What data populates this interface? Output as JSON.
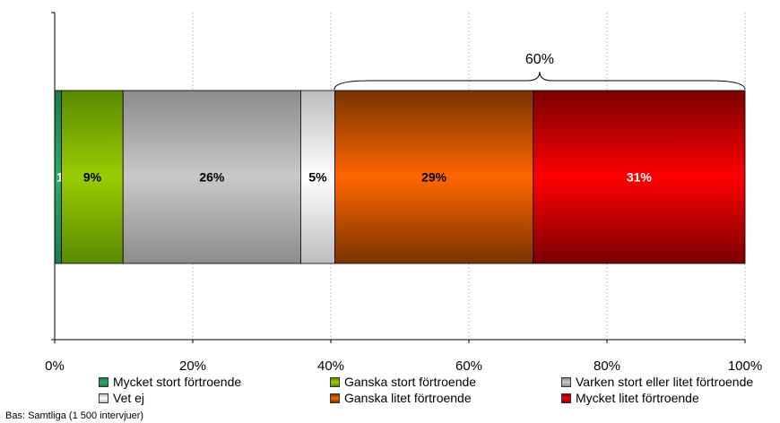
{
  "chart_data": {
    "type": "bar",
    "orientation": "horizontal",
    "stacked": true,
    "x_ticks": [
      "0%",
      "20%",
      "40%",
      "60%",
      "80%",
      "100%"
    ],
    "xlim": [
      0,
      100
    ],
    "grid": true,
    "legend_position": "bottom",
    "series": [
      {
        "name": "Mycket stort förtroende",
        "value": 1,
        "label": "1%",
        "color": "#1f7a4a",
        "color_light": "#2fa86a",
        "label_color": "#ffffff"
      },
      {
        "name": "Ganska stort förtroende",
        "value": 9,
        "label": "9%",
        "color": "#5a8a00",
        "color_light": "#99cc00",
        "label_color": "#000000"
      },
      {
        "name": "Varken stort eller litet förtroende",
        "value": 26,
        "label": "26%",
        "color": "#8c8c8c",
        "color_light": "#c8c8c8",
        "label_color": "#000000"
      },
      {
        "name": "Vet ej",
        "value": 5,
        "label": "5%",
        "color": "#bdbdbd",
        "color_light": "#ffffff",
        "label_color": "#000000"
      },
      {
        "name": "Ganska litet förtroende",
        "value": 29,
        "label": "29%",
        "color": "#7a3300",
        "color_light": "#ff6600",
        "label_color": "#000000"
      },
      {
        "name": "Mycket litet förtroende",
        "value": 31,
        "label": "31%",
        "color": "#7a0000",
        "color_light": "#ff0000",
        "label_color": "#ffffff"
      }
    ],
    "brace": {
      "label": "60%",
      "from": 40.5,
      "to": 100
    }
  },
  "footnote": "Bas: Samtliga (1 500 intervjuer)"
}
